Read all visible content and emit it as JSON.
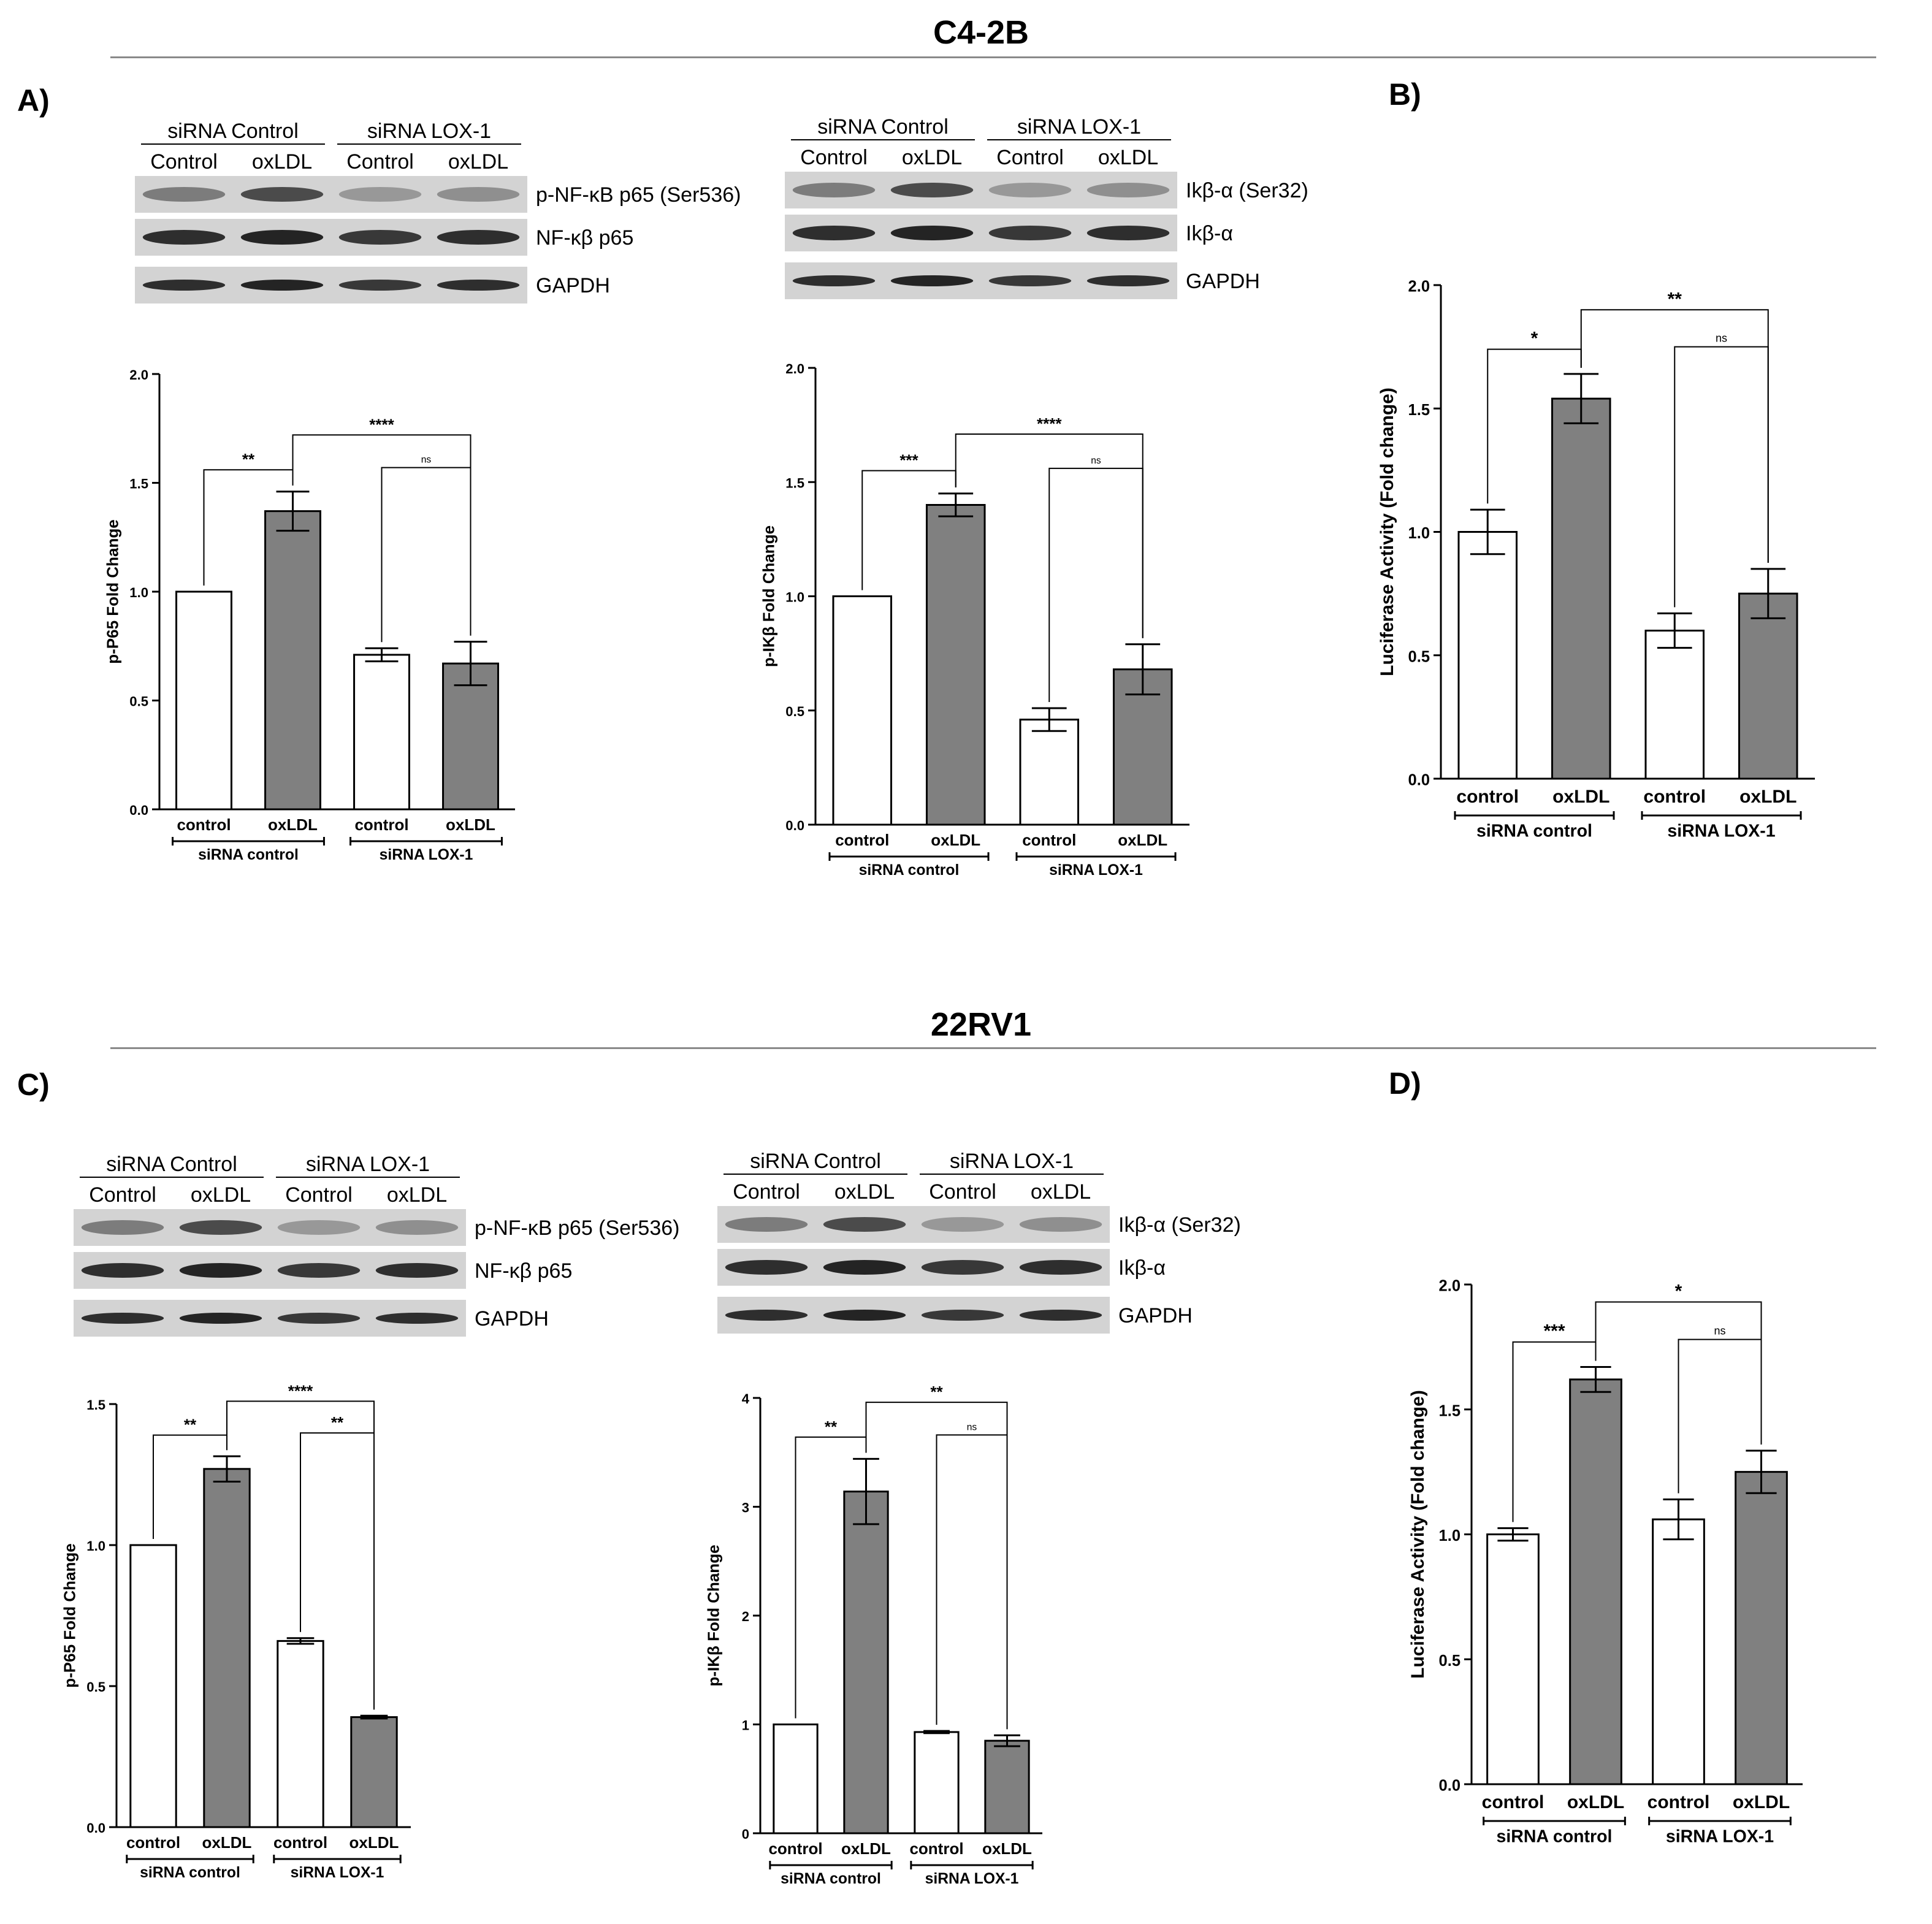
{
  "sections": [
    {
      "title": "C4-2B"
    },
    {
      "title": "22RV1"
    }
  ],
  "panels": {
    "A": "A)",
    "B": "B)",
    "C": "C)",
    "D": "D)"
  },
  "blots": [
    {
      "id": "c42b-p65",
      "group_labels": [
        "siRNA Control",
        "siRNA LOX-1"
      ],
      "lane_labels": [
        "Control",
        "oxLDL",
        "Control",
        "oxLDL"
      ],
      "band_labels": [
        "p-NF-κB p65 (Ser536)",
        "NF-κβ p65",
        "GAPDH"
      ]
    },
    {
      "id": "c42b-ikb",
      "group_labels": [
        "siRNA Control",
        "siRNA LOX-1"
      ],
      "lane_labels": [
        "Control",
        "oxLDL",
        "Control",
        "oxLDL"
      ],
      "band_labels": [
        "Ikβ-α (Ser32)",
        "Ikβ-α",
        "GAPDH"
      ]
    },
    {
      "id": "22rv1-p65",
      "group_labels": [
        "siRNA Control",
        "siRNA LOX-1"
      ],
      "lane_labels": [
        "Control",
        "oxLDL",
        "Control",
        "oxLDL"
      ],
      "band_labels": [
        "p-NF-κB p65 (Ser536)",
        "NF-κβ p65",
        "GAPDH"
      ]
    },
    {
      "id": "22rv1-ikb",
      "group_labels": [
        "siRNA Control",
        "siRNA LOX-1"
      ],
      "lane_labels": [
        "Control",
        "oxLDL",
        "Control",
        "oxLDL"
      ],
      "band_labels": [
        "Ikβ-α (Ser32)",
        "Ikβ-α",
        "GAPDH"
      ]
    }
  ],
  "chart_data": [
    {
      "id": "c42b-p65-chart",
      "type": "bar",
      "categories": [
        "control",
        "oxLDL",
        "control",
        "oxLDL"
      ],
      "groups": [
        "siRNA control",
        "siRNA LOX-1"
      ],
      "values": [
        1.0,
        1.37,
        0.71,
        0.67
      ],
      "errors": [
        0,
        0.09,
        0.03,
        0.1
      ],
      "ylabel": "p-P65 Fold Change",
      "ylim": [
        0,
        2.0
      ],
      "ticks": [
        "0.0",
        "0.5",
        "1.0",
        "1.5",
        "2.0"
      ],
      "significance": [
        {
          "from": 0,
          "to": 1,
          "label": "**"
        },
        {
          "from": 1,
          "to": 3,
          "label": "****"
        },
        {
          "from": 2,
          "to": 3,
          "label": "ns"
        }
      ]
    },
    {
      "id": "c42b-ikb-chart",
      "type": "bar",
      "categories": [
        "control",
        "oxLDL",
        "control",
        "oxLDL"
      ],
      "groups": [
        "siRNA control",
        "siRNA LOX-1"
      ],
      "values": [
        1.0,
        1.4,
        0.46,
        0.68
      ],
      "errors": [
        0,
        0.05,
        0.05,
        0.11
      ],
      "ylabel": "p-IKβ Fold Change",
      "ylim": [
        0,
        2.0
      ],
      "ticks": [
        "0.0",
        "0.5",
        "1.0",
        "1.5",
        "2.0"
      ],
      "significance": [
        {
          "from": 0,
          "to": 1,
          "label": "***"
        },
        {
          "from": 1,
          "to": 3,
          "label": "****"
        },
        {
          "from": 2,
          "to": 3,
          "label": "ns"
        }
      ]
    },
    {
      "id": "c42b-luc-chart",
      "type": "bar",
      "categories": [
        "control",
        "oxLDL",
        "control",
        "oxLDL"
      ],
      "groups": [
        "siRNA control",
        "siRNA LOX-1"
      ],
      "values": [
        1.0,
        1.54,
        0.6,
        0.75
      ],
      "errors": [
        0.09,
        0.1,
        0.07,
        0.1
      ],
      "ylabel": "Luciferase Activity (Fold change)",
      "ylim": [
        0,
        2.0
      ],
      "ticks": [
        "0.0",
        "0.5",
        "1.0",
        "1.5",
        "2.0"
      ],
      "significance": [
        {
          "from": 0,
          "to": 1,
          "label": "*"
        },
        {
          "from": 1,
          "to": 3,
          "label": "**"
        },
        {
          "from": 2,
          "to": 3,
          "label": "ns"
        }
      ]
    },
    {
      "id": "22rv1-p65-chart",
      "type": "bar",
      "categories": [
        "control",
        "oxLDL",
        "control",
        "oxLDL"
      ],
      "groups": [
        "siRNA control",
        "siRNA LOX-1"
      ],
      "values": [
        1.0,
        1.27,
        0.66,
        0.39
      ],
      "errors": [
        0,
        0.045,
        0.01,
        0.005
      ],
      "ylabel": "p-P65 Fold Change",
      "ylim": [
        0,
        1.5
      ],
      "ticks": [
        "0.0",
        "0.5",
        "1.0",
        "1.5"
      ],
      "significance": [
        {
          "from": 0,
          "to": 1,
          "label": "**"
        },
        {
          "from": 1,
          "to": 3,
          "label": "****"
        },
        {
          "from": 2,
          "to": 3,
          "label": "**"
        }
      ]
    },
    {
      "id": "22rv1-ikb-chart",
      "type": "bar",
      "categories": [
        "control",
        "oxLDL",
        "control",
        "oxLDL"
      ],
      "groups": [
        "siRNA control",
        "siRNA LOX-1"
      ],
      "values": [
        1.0,
        3.14,
        0.93,
        0.85
      ],
      "errors": [
        0,
        0.3,
        0.01,
        0.05
      ],
      "ylabel": "p-IKβ Fold Change",
      "ylim": [
        0,
        4
      ],
      "ticks": [
        "0",
        "1",
        "2",
        "3",
        "4"
      ],
      "significance": [
        {
          "from": 0,
          "to": 1,
          "label": "**"
        },
        {
          "from": 1,
          "to": 3,
          "label": "**"
        },
        {
          "from": 2,
          "to": 3,
          "label": "ns"
        }
      ]
    },
    {
      "id": "22rv1-luc-chart",
      "type": "bar",
      "categories": [
        "control",
        "oxLDL",
        "control",
        "oxLDL"
      ],
      "groups": [
        "siRNA control",
        "siRNA LOX-1"
      ],
      "values": [
        1.0,
        1.62,
        1.06,
        1.25
      ],
      "errors": [
        0.025,
        0.05,
        0.08,
        0.085
      ],
      "ylabel": "Luciferase Activity (Fold change)",
      "ylim": [
        0,
        2.0
      ],
      "ticks": [
        "0.0",
        "0.5",
        "1.0",
        "1.5",
        "2.0"
      ],
      "significance": [
        {
          "from": 0,
          "to": 1,
          "label": "***"
        },
        {
          "from": 1,
          "to": 3,
          "label": "*"
        },
        {
          "from": 2,
          "to": 3,
          "label": "ns"
        }
      ]
    }
  ]
}
